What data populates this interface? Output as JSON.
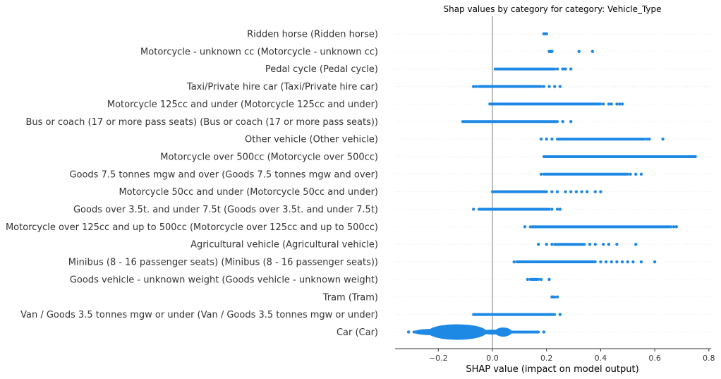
{
  "chart_data": {
    "type": "scatter",
    "title": "Shap values by category for category: Vehicle_Type",
    "xlabel": "SHAP value (impact on model output)",
    "ylabel": "",
    "xlim": [
      -0.36,
      0.8
    ],
    "xticks": [
      -0.2,
      0.0,
      0.2,
      0.4,
      0.6,
      0.8
    ],
    "xtick_labels": [
      "−0.2",
      "0.0",
      "0.2",
      "0.4",
      "0.6",
      "0.8"
    ],
    "zero_line": 0.0,
    "grid": false,
    "legend": "none",
    "colors": {
      "points": "#1e88e5",
      "zero_line": "#999999",
      "row_guides": "#e8e8e8",
      "axis": "#333333"
    },
    "categories": [
      {
        "label": "Ridden horse (Ridden horse)",
        "min": 0.19,
        "max": 0.2,
        "points": [
          0.19,
          0.2
        ]
      },
      {
        "label": "Motorcycle - unknown cc (Motorcycle - unknown cc)",
        "min": 0.21,
        "max": 0.22,
        "points": [
          0.21,
          0.22,
          0.32,
          0.37
        ]
      },
      {
        "label": "Pedal cycle (Pedal cycle)",
        "min": 0.01,
        "max": 0.23,
        "points": [
          0.24,
          0.26,
          0.27,
          0.29
        ]
      },
      {
        "label": "Taxi/Private hire car (Taxi/Private hire car)",
        "min": -0.05,
        "max": 0.18,
        "points": [
          -0.07,
          -0.06,
          0.19,
          0.21,
          0.23,
          0.25
        ]
      },
      {
        "label": "Motorcycle 125cc and under (Motorcycle 125cc and under)",
        "min": -0.01,
        "max": 0.4,
        "points": [
          0.41,
          0.43,
          0.44,
          0.46,
          0.47,
          0.48
        ]
      },
      {
        "label": "Bus or coach (17 or more pass seats) (Bus or coach (17 or more pass seats))",
        "min": -0.11,
        "max": 0.24,
        "points": [
          0.26,
          0.29
        ]
      },
      {
        "label": "Other vehicle (Other vehicle)",
        "min": 0.24,
        "max": 0.56,
        "points": [
          0.18,
          0.2,
          0.22,
          0.57,
          0.58,
          0.63
        ]
      },
      {
        "label": "Motorcycle over 500cc (Motorcycle over 500cc)",
        "min": 0.19,
        "max": 0.75,
        "points": [
          0.74,
          0.75
        ]
      },
      {
        "label": "Goods 7.5 tonnes mgw and over (Goods 7.5 tonnes mgw and over)",
        "min": 0.19,
        "max": 0.5,
        "points": [
          0.18,
          0.51,
          0.53,
          0.55
        ]
      },
      {
        "label": "Motorcycle 50cc and under (Motorcycle 50cc and under)",
        "min": 0.0,
        "max": 0.2,
        "points": [
          0.22,
          0.24,
          0.27,
          0.29,
          0.31,
          0.33,
          0.35,
          0.38,
          0.4
        ]
      },
      {
        "label": "Goods over 3.5t. and under 7.5t (Goods over 3.5t. and under 7.5t)",
        "min": -0.05,
        "max": 0.21,
        "points": [
          -0.07,
          0.22,
          0.24,
          0.25
        ]
      },
      {
        "label": "Motorcycle over 125cc and up to 500cc (Motorcycle over 125cc and up to 500cc)",
        "min": 0.14,
        "max": 0.66,
        "points": [
          0.12,
          0.67,
          0.68
        ]
      },
      {
        "label": "Agricultural vehicle (Agricultural vehicle)",
        "min": 0.23,
        "max": 0.34,
        "points": [
          0.17,
          0.2,
          0.22,
          0.36,
          0.38,
          0.41,
          0.43,
          0.46,
          0.53
        ]
      },
      {
        "label": "Minibus (8 - 16 passenger seats) (Minibus (8 - 16 passenger seats))",
        "min": 0.09,
        "max": 0.38,
        "points": [
          0.08,
          0.4,
          0.42,
          0.44,
          0.46,
          0.48,
          0.5,
          0.52,
          0.55,
          0.6
        ]
      },
      {
        "label": "Goods vehicle - unknown weight (Goods vehicle - unknown weight)",
        "min": 0.14,
        "max": 0.17,
        "points": [
          0.13,
          0.15,
          0.16,
          0.18,
          0.21
        ]
      },
      {
        "label": "Tram (Tram)",
        "min": 0.22,
        "max": 0.23,
        "points": [
          0.22,
          0.24
        ]
      },
      {
        "label": "Van / Goods 3.5 tonnes mgw or under (Van / Goods 3.5 tonnes mgw or under)",
        "min": -0.07,
        "max": 0.23,
        "points": [
          0.25
        ]
      },
      {
        "label": "Car (Car)",
        "min": -0.29,
        "max": 0.17,
        "points": [
          -0.31,
          0.19
        ]
      }
    ]
  }
}
